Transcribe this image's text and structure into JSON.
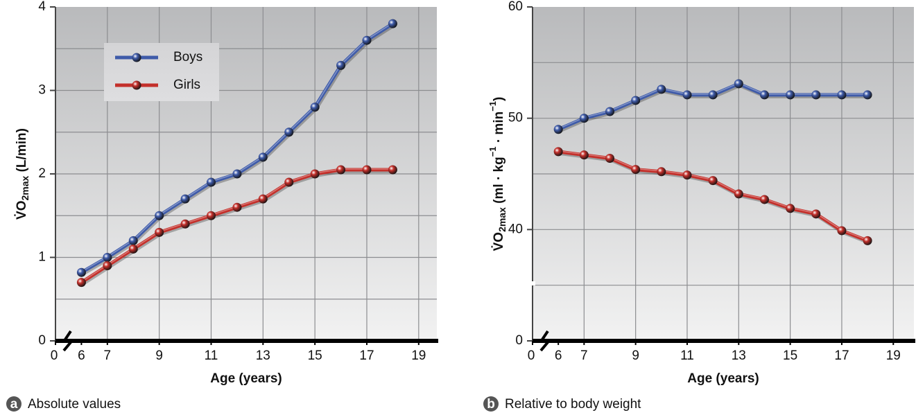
{
  "chart_data": [
    {
      "type": "line",
      "caption_letter": "a",
      "caption": "Absolute values",
      "xlabel": "Age (years)",
      "ylabel_parts": [
        {
          "text": "V̇O",
          "style": "normal"
        },
        {
          "text": "2max",
          "style": "sub"
        },
        {
          "text": " (L/min)",
          "style": "normal"
        }
      ],
      "x": [
        6,
        7,
        8,
        9,
        10,
        11,
        12,
        13,
        14,
        15,
        16,
        17,
        18
      ],
      "xlim": [
        0,
        19.7
      ],
      "x_break": [
        0,
        5
      ],
      "xticks": [
        0,
        6,
        7,
        9,
        11,
        13,
        15,
        17,
        19
      ],
      "x_gridlines": [
        7,
        9,
        11,
        13,
        15,
        17,
        19
      ],
      "ylim": [
        0,
        4
      ],
      "yticks": [
        0,
        1,
        2,
        3,
        4
      ],
      "y_gridlines": [
        0.5,
        1,
        1.5,
        2,
        2.5,
        3,
        3.5
      ],
      "legend": "upper left",
      "series": [
        {
          "name": "Boys",
          "color": "#3f5ba9",
          "values": [
            0.82,
            1.0,
            1.2,
            1.5,
            1.7,
            1.9,
            2.0,
            2.2,
            2.5,
            2.8,
            3.3,
            3.6,
            3.8
          ]
        },
        {
          "name": "Girls",
          "color": "#c4302b",
          "values": [
            0.7,
            0.9,
            1.1,
            1.3,
            1.4,
            1.5,
            1.6,
            1.7,
            1.9,
            2.0,
            2.05,
            2.05,
            2.05
          ]
        }
      ]
    },
    {
      "type": "line",
      "caption_letter": "b",
      "caption": "Relative to body weight",
      "xlabel": "Age (years)",
      "ylabel_parts": [
        {
          "text": "V̇O",
          "style": "normal"
        },
        {
          "text": "2max",
          "style": "sub"
        },
        {
          "text": " (ml · kg",
          "style": "normal"
        },
        {
          "text": "−1",
          "style": "sup"
        },
        {
          "text": " · min",
          "style": "normal"
        },
        {
          "text": "−1",
          "style": "sup"
        },
        {
          "text": ")",
          "style": "normal"
        }
      ],
      "x": [
        6,
        7,
        8,
        9,
        10,
        11,
        12,
        13,
        14,
        15,
        16,
        17,
        18
      ],
      "xlim": [
        0,
        19.8
      ],
      "x_break": [
        0,
        5
      ],
      "xticks": [
        0,
        6,
        7,
        9,
        11,
        13,
        15,
        17,
        19
      ],
      "x_gridlines": [
        7,
        9,
        11,
        13,
        15,
        17,
        19
      ],
      "ylim": [
        0,
        60
      ],
      "y_break": [
        0,
        30
      ],
      "yticks": [
        0,
        40,
        50,
        60
      ],
      "y_gridlines": [
        35,
        40,
        45,
        50,
        55
      ],
      "series": [
        {
          "color": "#3f5ba9",
          "values": [
            49,
            50,
            50.6,
            51.6,
            52.6,
            52.1,
            52.1,
            53.1,
            52.1,
            52.1,
            52.1,
            52.1,
            52.1
          ]
        },
        {
          "color": "#c4302b",
          "values": [
            47.0,
            46.7,
            46.4,
            45.4,
            45.2,
            44.9,
            44.4,
            43.2,
            42.7,
            41.9,
            41.4,
            39.9,
            39.0
          ]
        }
      ]
    }
  ]
}
